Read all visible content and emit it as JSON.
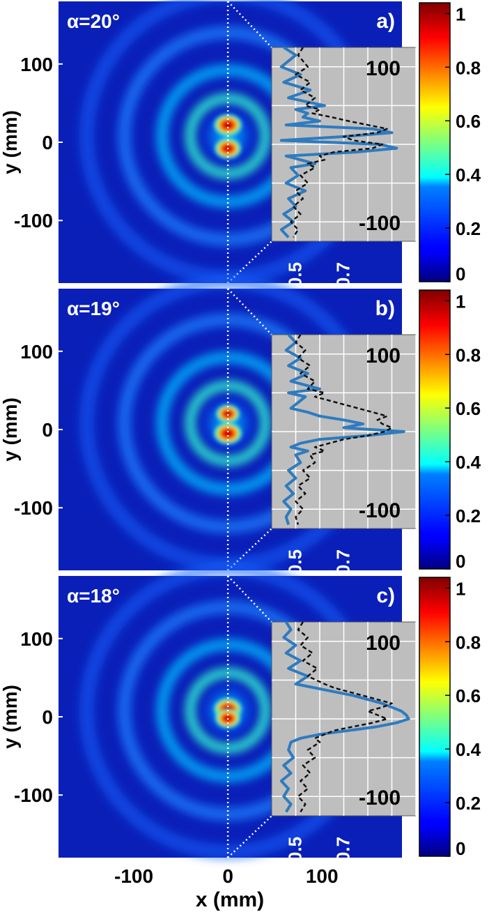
{
  "figure": {
    "xlabel": "x (mm)",
    "ylabel": "y (mm)",
    "x_ticks": [
      "-100",
      "0",
      "100"
    ],
    "y_ticks": [
      "100",
      "0",
      "-100"
    ],
    "colorbar_ticks": [
      "1",
      "0.8",
      "0.6",
      "0.4",
      "0.2",
      "0"
    ]
  },
  "chart_data": [
    {
      "type": "heatmap",
      "panel_label": "a)",
      "angle_label": "α=20°",
      "xlim": [
        -180,
        185
      ],
      "ylim": [
        -180,
        180
      ],
      "hotspots": [
        {
          "x": 0,
          "y": 22,
          "value": 1.0
        },
        {
          "x": 0,
          "y": -8,
          "value": 0.95
        }
      ],
      "ring_radii": [
        40,
        70,
        110,
        150
      ],
      "inset": {
        "type": "line",
        "x_ticks": [
          "0.5",
          "0.7"
        ],
        "y_ticks": [
          "100",
          "-100"
        ],
        "xlim": [
          0.4,
          1.0
        ],
        "ylim": [
          -125,
          125
        ],
        "series": [
          {
            "style": "solid",
            "color": "#2e7bbf",
            "y": [
              125,
              115,
              100,
              90,
              80,
              70,
              60,
              50,
              45,
              40,
              35,
              30,
              25,
              20,
              15,
              10,
              5,
              0,
              -5,
              -10,
              -15,
              -20,
              -25,
              -30,
              -40,
              -50,
              -60,
              -70,
              -80,
              -90,
              -100,
              -110,
              -120
            ],
            "x": [
              0.45,
              0.5,
              0.44,
              0.52,
              0.45,
              0.56,
              0.47,
              0.62,
              0.5,
              0.55,
              0.53,
              0.6,
              0.46,
              0.82,
              0.9,
              0.7,
              0.44,
              0.85,
              0.92,
              0.75,
              0.46,
              0.52,
              0.58,
              0.48,
              0.51,
              0.46,
              0.54,
              0.47,
              0.5,
              0.45,
              0.49,
              0.44,
              0.47
            ]
          },
          {
            "style": "dashed",
            "color": "#111111",
            "y": [
              125,
              115,
              100,
              90,
              80,
              70,
              60,
              50,
              45,
              40,
              35,
              30,
              25,
              20,
              15,
              10,
              5,
              0,
              -5,
              -10,
              -15,
              -20,
              -25,
              -30,
              -40,
              -50,
              -60,
              -70,
              -80,
              -90,
              -100,
              -110,
              -120
            ],
            "x": [
              0.53,
              0.51,
              0.55,
              0.5,
              0.56,
              0.52,
              0.58,
              0.54,
              0.6,
              0.57,
              0.65,
              0.72,
              0.8,
              0.88,
              0.84,
              0.7,
              0.74,
              0.86,
              0.82,
              0.66,
              0.6,
              0.62,
              0.55,
              0.58,
              0.52,
              0.55,
              0.5,
              0.53,
              0.49,
              0.52,
              0.48,
              0.51,
              0.49
            ]
          }
        ]
      }
    },
    {
      "type": "heatmap",
      "panel_label": "b)",
      "angle_label": "α=19°",
      "xlim": [
        -180,
        185
      ],
      "ylim": [
        -180,
        180
      ],
      "hotspots": [
        {
          "x": 0,
          "y": 20,
          "value": 0.85
        },
        {
          "x": 0,
          "y": -5,
          "value": 1.0
        }
      ],
      "ring_radii": [
        40,
        70,
        110,
        150
      ],
      "inset": {
        "type": "line",
        "x_ticks": [
          "0.5",
          "0.7"
        ],
        "y_ticks": [
          "100",
          "-100"
        ],
        "xlim": [
          0.4,
          1.0
        ],
        "ylim": [
          -125,
          125
        ],
        "series": [
          {
            "style": "solid",
            "color": "#2e7bbf",
            "y": [
              125,
              115,
              105,
              95,
              85,
              75,
              65,
              55,
              50,
              45,
              40,
              35,
              30,
              25,
              20,
              15,
              10,
              5,
              0,
              -5,
              -10,
              -15,
              -20,
              -25,
              -30,
              -40,
              -50,
              -60,
              -70,
              -80,
              -90,
              -100,
              -110,
              -120
            ],
            "x": [
              0.47,
              0.5,
              0.46,
              0.52,
              0.47,
              0.55,
              0.48,
              0.6,
              0.47,
              0.54,
              0.52,
              0.5,
              0.48,
              0.55,
              0.6,
              0.7,
              0.78,
              0.7,
              0.95,
              0.8,
              0.6,
              0.52,
              0.48,
              0.55,
              0.5,
              0.52,
              0.47,
              0.5,
              0.46,
              0.49,
              0.45,
              0.48,
              0.46,
              0.47
            ]
          },
          {
            "style": "dashed",
            "color": "#111111",
            "y": [
              125,
              115,
              105,
              95,
              85,
              75,
              65,
              55,
              50,
              45,
              40,
              35,
              30,
              25,
              20,
              15,
              10,
              5,
              0,
              -5,
              -10,
              -15,
              -20,
              -25,
              -30,
              -40,
              -50,
              -60,
              -70,
              -80,
              -90,
              -100,
              -110,
              -120
            ],
            "x": [
              0.52,
              0.5,
              0.54,
              0.51,
              0.56,
              0.52,
              0.58,
              0.55,
              0.62,
              0.58,
              0.64,
              0.7,
              0.76,
              0.82,
              0.88,
              0.84,
              0.86,
              0.9,
              0.87,
              0.8,
              0.7,
              0.64,
              0.58,
              0.62,
              0.56,
              0.58,
              0.53,
              0.56,
              0.51,
              0.54,
              0.5,
              0.53,
              0.5,
              0.51
            ]
          }
        ]
      }
    },
    {
      "type": "heatmap",
      "panel_label": "c)",
      "angle_label": "α=18°",
      "xlim": [
        -180,
        185
      ],
      "ylim": [
        -180,
        180
      ],
      "hotspots": [
        {
          "x": 0,
          "y": 10,
          "value": 1.0
        },
        {
          "x": 0,
          "y": -2,
          "value": 0.9
        }
      ],
      "ring_radii": [
        40,
        70,
        110,
        150
      ],
      "inset": {
        "type": "line",
        "x_ticks": [
          "0.5",
          "0.7"
        ],
        "y_ticks": [
          "100",
          "-100"
        ],
        "xlim": [
          0.4,
          1.0
        ],
        "ylim": [
          -125,
          125
        ],
        "series": [
          {
            "style": "solid",
            "color": "#2e7bbf",
            "y": [
              125,
              115,
              105,
              95,
              85,
              75,
              65,
              55,
              45,
              40,
              35,
              30,
              25,
              20,
              15,
              10,
              5,
              0,
              -5,
              -10,
              -15,
              -20,
              -25,
              -30,
              -40,
              -50,
              -60,
              -70,
              -80,
              -90,
              -100,
              -110,
              -120
            ],
            "x": [
              0.46,
              0.48,
              0.45,
              0.5,
              0.46,
              0.52,
              0.47,
              0.55,
              0.5,
              0.58,
              0.66,
              0.74,
              0.8,
              0.86,
              0.9,
              0.94,
              0.96,
              0.97,
              0.92,
              0.84,
              0.72,
              0.6,
              0.52,
              0.48,
              0.47,
              0.49,
              0.45,
              0.48,
              0.44,
              0.47,
              0.45,
              0.48,
              0.46
            ]
          },
          {
            "style": "dashed",
            "color": "#111111",
            "y": [
              125,
              115,
              105,
              95,
              85,
              75,
              65,
              55,
              45,
              40,
              35,
              30,
              25,
              20,
              15,
              10,
              5,
              0,
              -5,
              -10,
              -15,
              -20,
              -25,
              -30,
              -40,
              -50,
              -60,
              -70,
              -80,
              -90,
              -100,
              -110,
              -120
            ],
            "x": [
              0.53,
              0.51,
              0.55,
              0.52,
              0.57,
              0.53,
              0.59,
              0.55,
              0.62,
              0.66,
              0.72,
              0.78,
              0.84,
              0.9,
              0.86,
              0.8,
              0.84,
              0.88,
              0.82,
              0.74,
              0.66,
              0.62,
              0.58,
              0.6,
              0.55,
              0.58,
              0.53,
              0.56,
              0.52,
              0.55,
              0.51,
              0.54,
              0.52
            ]
          }
        ]
      }
    }
  ]
}
